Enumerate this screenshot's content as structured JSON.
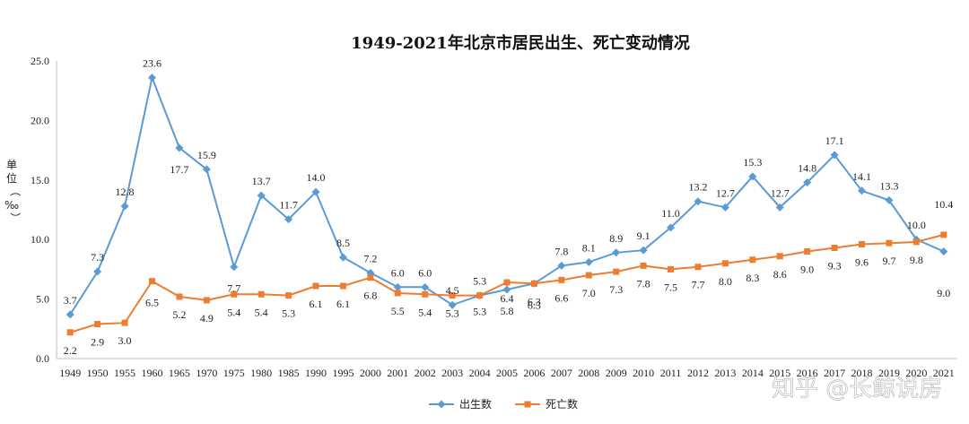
{
  "chart_data": {
    "type": "line",
    "title": "1949-2021年北京市居民出生、死亡变动情况",
    "ylabel": "单位（‰）",
    "xlabel": "",
    "ylim": [
      0,
      25
    ],
    "yticks": [
      "0.0",
      "5.0",
      "10.0",
      "15.0",
      "20.0",
      "25.0"
    ],
    "categories": [
      "1949",
      "1950",
      "1955",
      "1960",
      "1965",
      "1970",
      "1975",
      "1980",
      "1985",
      "1990",
      "1995",
      "2000",
      "2001",
      "2002",
      "2003",
      "2004",
      "2005",
      "2006",
      "2007",
      "2008",
      "2009",
      "2010",
      "2011",
      "2012",
      "2013",
      "2014",
      "2015",
      "2016",
      "2017",
      "2018",
      "2019",
      "2020",
      "2021"
    ],
    "series": [
      {
        "name": "出生数",
        "color": "#5b9bd5",
        "marker": "diamond",
        "values": [
          3.7,
          7.3,
          12.8,
          23.6,
          17.7,
          15.9,
          7.7,
          13.7,
          11.7,
          14.0,
          8.5,
          7.2,
          6.0,
          6.0,
          4.5,
          5.3,
          5.8,
          6.3,
          7.8,
          8.1,
          8.9,
          9.1,
          11.0,
          13.2,
          12.7,
          15.3,
          12.7,
          14.8,
          17.1,
          14.1,
          13.3,
          10.0,
          9.0
        ],
        "labels": [
          "3.7",
          "7.3",
          "12.8",
          "23.6",
          "17.7",
          "15.9",
          "7.7",
          "13.7",
          "11.7",
          "14.0",
          "8.5",
          "7.2",
          "6.0",
          "6.0",
          "4.5",
          "5.3",
          "5.8",
          "6.3",
          "7.8",
          "8.1",
          "8.9",
          "9.1",
          "11.0",
          "13.2",
          "12.7",
          "15.3",
          "12.7",
          "14.8",
          "17.1",
          "14.1",
          "13.3",
          "10.0",
          "9.0"
        ]
      },
      {
        "name": "死亡数",
        "color": "#ed7d31",
        "marker": "square",
        "values": [
          2.2,
          2.9,
          3.0,
          6.5,
          5.2,
          4.9,
          5.4,
          5.4,
          5.3,
          6.1,
          6.1,
          6.8,
          5.5,
          5.4,
          5.3,
          5.3,
          6.4,
          6.3,
          6.6,
          7.0,
          7.3,
          7.8,
          7.5,
          7.7,
          8.0,
          8.3,
          8.6,
          9.0,
          9.3,
          9.6,
          9.7,
          9.8,
          10.4
        ],
        "labels": [
          "2.2",
          "2.9",
          "3.0",
          "6.5",
          "5.2",
          "4.9",
          "5.4",
          "5.4",
          "5.3",
          "6.1",
          "6.1",
          "6.8",
          "5.5",
          "5.4",
          "5.3",
          "5.3",
          "6.4",
          "6.3",
          "6.6",
          "7.0",
          "7.3",
          "7.8",
          "7.5",
          "7.7",
          "8.0",
          "8.3",
          "8.6",
          "9.0",
          "9.3",
          "9.6",
          "9.7",
          "9.8",
          "10.4"
        ]
      }
    ],
    "legend_position": "bottom-center"
  },
  "watermark": "知乎 @长鲸说房"
}
